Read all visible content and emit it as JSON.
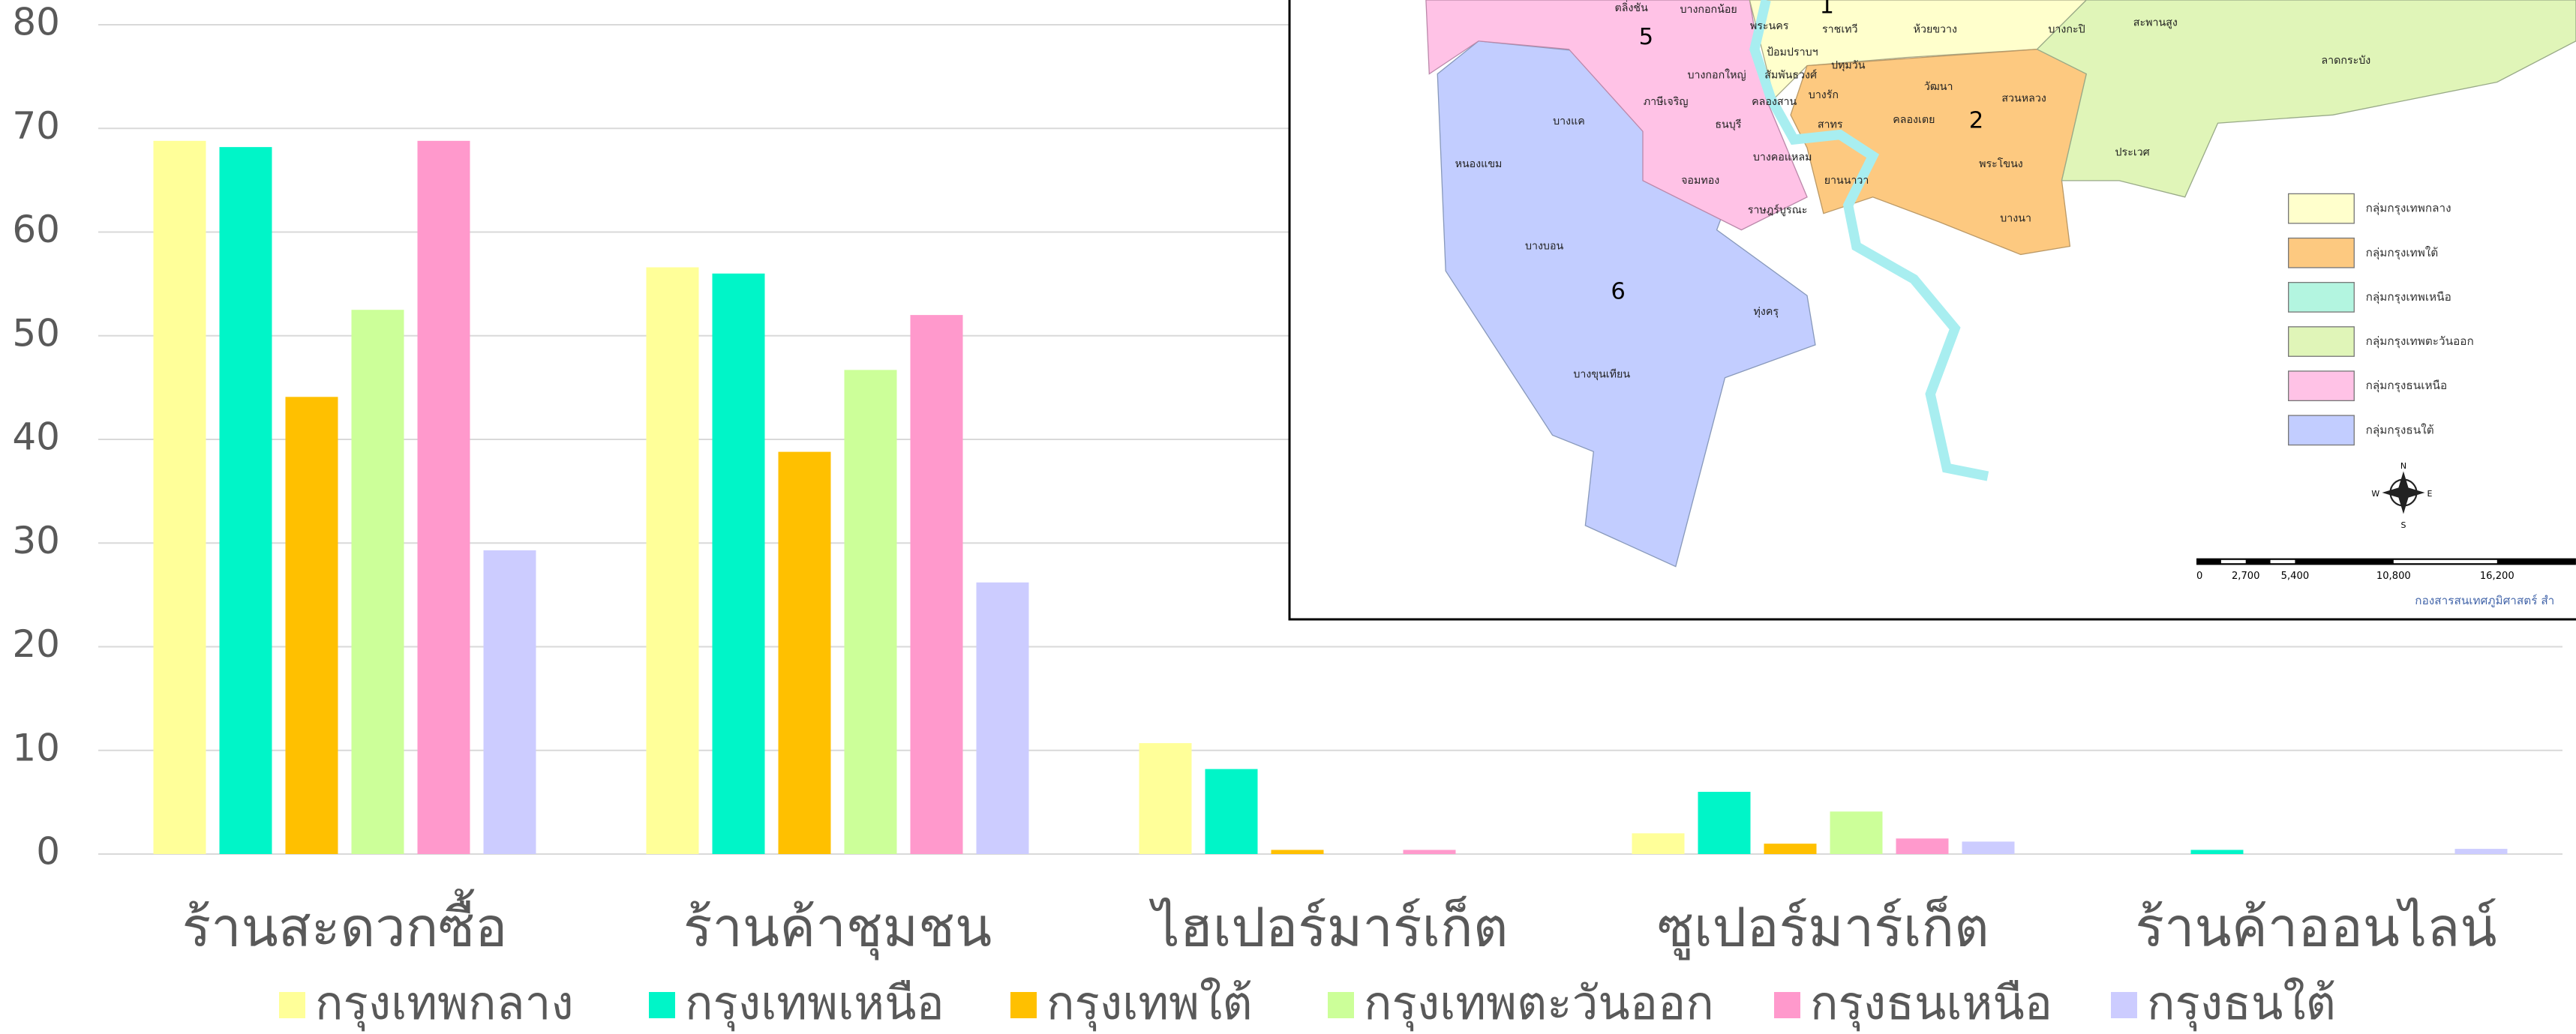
{
  "chart_data": {
    "type": "bar",
    "categories": [
      "ร้านสะดวกซื้อ",
      "ร้านค้าชุมชน",
      "ไฮเปอร์มาร์เก็ต",
      "ซูเปอร์มาร์เก็ต",
      "ร้านค้าออนไลน์"
    ],
    "series": [
      {
        "name": "กรุงเทพกลาง",
        "color": "#ffff99",
        "values": [
          68.8,
          56.6,
          10.7,
          2.0,
          0
        ]
      },
      {
        "name": "กรุงเทพเหนือ",
        "color": "#00f5c8",
        "values": [
          68.2,
          56.0,
          8.2,
          6.0,
          0.4
        ]
      },
      {
        "name": "กรุงเทพใต้",
        "color": "#ffc000",
        "values": [
          44.1,
          38.8,
          0.4,
          1.0,
          0
        ]
      },
      {
        "name": "กรุงเทพตะวันออก",
        "color": "#ccff99",
        "values": [
          52.5,
          46.7,
          0,
          4.1,
          0
        ]
      },
      {
        "name": "กรุงธนเหนือ",
        "color": "#ff99cc",
        "values": [
          68.8,
          52.0,
          0.4,
          1.5,
          0
        ]
      },
      {
        "name": "กรุงธนใต้",
        "color": "#ccccff",
        "values": [
          29.3,
          26.2,
          0,
          1.2,
          0.5
        ]
      }
    ],
    "ylim": [
      0,
      80
    ],
    "yticks": [
      0,
      10,
      20,
      30,
      40,
      50,
      60,
      70,
      80
    ],
    "grid": true,
    "legend": "bottom"
  },
  "map": {
    "group_numbers": [
      "5",
      "1",
      "2",
      "6"
    ],
    "districts": [
      "ตลิ่งชัน",
      "บางกอกน้อย",
      "พระนคร",
      "ราชเทวี",
      "ห้วยขวาง",
      "บางกะปิ",
      "สะพานสูง",
      "ลาดกระบัง",
      "ป้อมปราบฯ",
      "ปทุมวัน",
      "บางกอกใหญ่",
      "ภาษีเจริญ",
      "บางแค",
      "สัมพันธวงศ์",
      "คลองสาน",
      "บางรัก",
      "วัฒนา",
      "สวนหลวง",
      "ธนบุรี",
      "สาทร",
      "คลองเตย",
      "ประเวศ",
      "หนองแขม",
      "จอมทอง",
      "บางคอแหลม",
      "ยานนาวา",
      "พระโขนง",
      "ราษฎร์บูรณะ",
      "บางนา",
      "บางบอน",
      "ทุ่งครุ",
      "บางขุนเทียน"
    ],
    "legend": [
      "กลุ่มกรุงเทพกลาง",
      "กลุ่มกรุงเทพใต้",
      "กลุ่มกรุงเทพเหนือ",
      "กลุ่มกรุงเทพตะวันออก",
      "กลุ่มกรุงธนเหนือ",
      "กลุ่มกรุงธนใต้"
    ],
    "legend_colors": [
      "#ffffcc",
      "#fdc980",
      "#b3f5e0",
      "#e0f5b8",
      "#ffc2e6",
      "#c2cdff"
    ],
    "scale_labels": [
      "0",
      "2,700",
      "5,400",
      "10,800",
      "16,200"
    ],
    "compass": [
      "N",
      "S",
      "E",
      "W"
    ],
    "credit": "กองสารสนเทศภูมิศาสตร์ สำ"
  }
}
